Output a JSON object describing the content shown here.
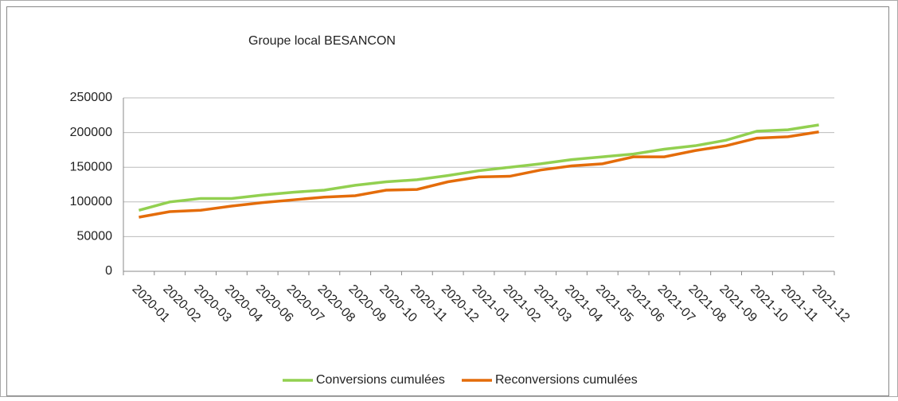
{
  "chart_data": {
    "type": "line",
    "title": "Groupe local BESANCON",
    "categories": [
      "2020-01",
      "2020-02",
      "2020-03",
      "2020-04",
      "2020-06",
      "2020-07",
      "2020-08",
      "2020-09",
      "2020-10",
      "2020-11",
      "2020-12",
      "2021-01",
      "2021-02",
      "2021-03",
      "2021-04",
      "2021-05",
      "2021-06",
      "2021-07",
      "2021-08",
      "2021-09",
      "2021-10",
      "2021-11",
      "2021-12"
    ],
    "series": [
      {
        "name": "Conversions cumulées",
        "color": "#92d050",
        "values": [
          88000,
          100000,
          105000,
          105000,
          110000,
          114000,
          117000,
          124000,
          129000,
          132000,
          138000,
          145000,
          150000,
          155000,
          161000,
          165000,
          169000,
          176000,
          181000,
          189000,
          202000,
          204000,
          211000
        ]
      },
      {
        "name": "Reconversions cumulées",
        "color": "#e46c0a",
        "values": [
          78000,
          86000,
          88000,
          94000,
          99000,
          103000,
          107000,
          109000,
          117000,
          118000,
          129000,
          136000,
          137000,
          146000,
          152000,
          155000,
          165000,
          165000,
          174000,
          181000,
          192000,
          194000,
          201000
        ]
      }
    ],
    "ylim": [
      0,
      250000
    ],
    "yticks": [
      0,
      50000,
      100000,
      150000,
      200000,
      250000
    ],
    "grid": true,
    "legend": "bottom"
  }
}
